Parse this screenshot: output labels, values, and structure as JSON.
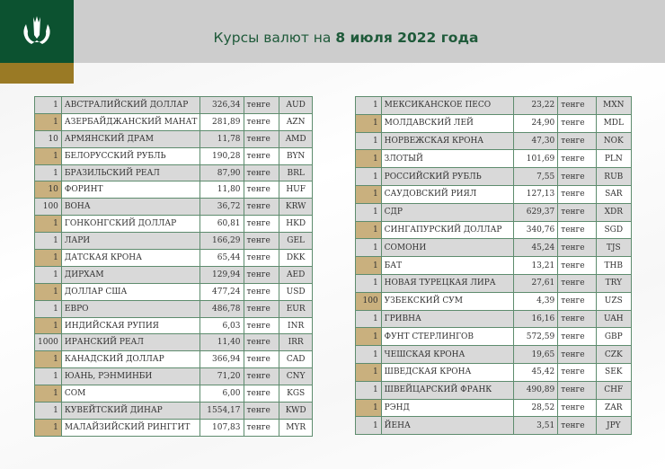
{
  "header": {
    "title_prefix": "Курсы валют на ",
    "title_date": "8 июля 2022 года"
  },
  "colors": {
    "green": "#0c5230",
    "gold": "#9a7a25",
    "row_gold": "#c9b07e"
  },
  "left": [
    [
      "1",
      "АВСТРАЛИЙСКИЙ ДОЛЛАР",
      "326,34",
      "тенге",
      "AUD"
    ],
    [
      "1",
      "АЗЕРБАЙДЖАНСКИЙ МАНАТ",
      "281,89",
      "тенге",
      "AZN"
    ],
    [
      "10",
      "АРМЯНСКИЙ  ДРАМ",
      "11,78",
      "тенге",
      "AMD"
    ],
    [
      "1",
      "БЕЛОРУССКИЙ РУБЛЬ",
      "190,28",
      "тенге",
      "BYN"
    ],
    [
      "1",
      "БРАЗИЛЬСКИЙ РЕАЛ",
      "87,90",
      "тенге",
      "BRL"
    ],
    [
      "10",
      "ФОРИНТ",
      "11,80",
      "тенге",
      "HUF"
    ],
    [
      "100",
      "ВОНА",
      "36,72",
      "тенге",
      "KRW"
    ],
    [
      "1",
      "ГОНКОНГСКИЙ ДОЛЛАР",
      "60,81",
      "тенге",
      "HKD"
    ],
    [
      "1",
      "ЛАРИ",
      "166,29",
      "тенге",
      "GEL"
    ],
    [
      "1",
      "ДАТСКАЯ КРОНА",
      "65,44",
      "тенге",
      "DKK"
    ],
    [
      "1",
      "ДИРХАМ",
      "129,94",
      "тенге",
      "AED"
    ],
    [
      "1",
      "ДОЛЛАР США",
      "477,24",
      "тенге",
      "USD"
    ],
    [
      "1",
      "ЕВРО",
      "486,78",
      "тенге",
      "EUR"
    ],
    [
      "1",
      "ИНДИЙСКАЯ РУПИЯ",
      "6,03",
      "тенге",
      "INR"
    ],
    [
      "1000",
      "ИРАНСКИЙ РЕАЛ",
      "11,40",
      "тенге",
      "IRR"
    ],
    [
      "1",
      "КАНАДСКИЙ ДОЛЛАР",
      "366,94",
      "тенге",
      "CAD"
    ],
    [
      "1",
      "ЮАНЬ, РЭНМИНБИ",
      "71,20",
      "тенге",
      "CNY"
    ],
    [
      "1",
      "СОМ",
      "6,00",
      "тенге",
      "KGS"
    ],
    [
      "1",
      "КУВЕЙТСКИЙ ДИНАР",
      "1554,17",
      "тенге",
      "KWD"
    ],
    [
      "1",
      "МАЛАЙЗИЙСКИЙ РИНГГИТ",
      "107,83",
      "тенге",
      "MYR"
    ]
  ],
  "right": [
    [
      "1",
      "МЕКСИКАНСКОЕ ПЕСО",
      "23,22",
      "тенге",
      "MXN"
    ],
    [
      "1",
      "МОЛДАВСКИЙ ЛЕЙ",
      "24,90",
      "тенге",
      "MDL"
    ],
    [
      "1",
      "НОРВЕЖСКАЯ КРОНА",
      "47,30",
      "тенге",
      "NOK"
    ],
    [
      "1",
      "ЗЛОТЫЙ",
      "101,69",
      "тенге",
      "PLN"
    ],
    [
      "1",
      "РОССИЙСКИЙ РУБЛЬ",
      "7,55",
      "тенге",
      "RUB"
    ],
    [
      "1",
      "САУДОВСКИЙ РИЯЛ",
      "127,13",
      "тенге",
      "SAR"
    ],
    [
      "1",
      "СДР",
      "629,37",
      "тенге",
      "XDR"
    ],
    [
      "1",
      "СИНГАПУРСКИЙ ДОЛЛАР",
      "340,76",
      "тенге",
      "SGD"
    ],
    [
      "1",
      "СОМОНИ",
      "45,24",
      "тенге",
      "TJS"
    ],
    [
      "1",
      "БАТ",
      "13,21",
      "тенге",
      "THB"
    ],
    [
      "1",
      "НОВАЯ ТУРЕЦКАЯ ЛИРА",
      "27,61",
      "тенге",
      "TRY"
    ],
    [
      "100",
      "УЗБЕКСКИЙ СУМ",
      "4,39",
      "тенге",
      "UZS"
    ],
    [
      "1",
      "ГРИВНА",
      "16,16",
      "тенге",
      "UAH"
    ],
    [
      "1",
      "ФУНТ СТЕРЛИНГОВ",
      "572,59",
      "тенге",
      "GBP"
    ],
    [
      "1",
      "ЧЕШСКАЯ КРОНА",
      "19,65",
      "тенге",
      "CZK"
    ],
    [
      "1",
      "ШВЕДСКАЯ КРОНА",
      "45,42",
      "тенге",
      "SEK"
    ],
    [
      "1",
      "ШВЕЙЦАРСКИЙ ФРАНК",
      "490,89",
      "тенге",
      "CHF"
    ],
    [
      "1",
      "РЭНД",
      "28,52",
      "тенге",
      "ZAR"
    ],
    [
      "1",
      "ЙЕНА",
      "3,51",
      "тенге",
      "JPY"
    ]
  ]
}
